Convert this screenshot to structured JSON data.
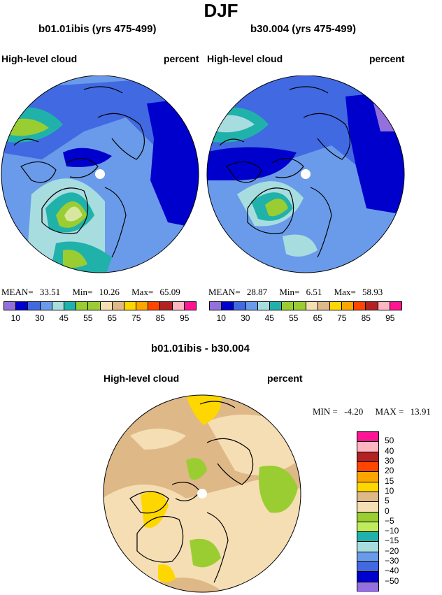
{
  "figure_title": "DJF",
  "variable": "High-level cloud",
  "units": "percent",
  "panels": [
    {
      "title": "b01.01ibis (yrs 475-499)",
      "stats": {
        "mean_label": "MEAN=",
        "mean": "33.51",
        "min_label": "Min=",
        "min": "10.26",
        "max_label": "Max=",
        "max": "65.09"
      }
    },
    {
      "title": "b30.004 (yrs 475-499)",
      "stats": {
        "mean_label": "MEAN=",
        "mean": "28.87",
        "min_label": "Min=",
        "min": "6.51",
        "max_label": "Max=",
        "max": "58.93"
      }
    }
  ],
  "colorbar_abs": {
    "colors": [
      "#9370db",
      "#0000cd",
      "#4169e1",
      "#6a9bea",
      "#a8dde0",
      "#20b2aa",
      "#9acd32",
      "#9acd32",
      "#f5deb3",
      "#deb887",
      "#ffd700",
      "#ffa500",
      "#ff4500",
      "#b22222",
      "#ffb6c1",
      "#ff1493"
    ],
    "labels": [
      "10",
      "30",
      "45",
      "55",
      "65",
      "75",
      "85",
      "95"
    ]
  },
  "diff": {
    "title": "b01.01ibis - b30.004",
    "min_label": "MIN =",
    "min": "-4.20",
    "max_label": "MAX =",
    "max": "13.91"
  },
  "colorbar_diff": {
    "colors": [
      "#ff1493",
      "#ffb6c1",
      "#b22222",
      "#ff4500",
      "#ffa500",
      "#ffd700",
      "#deb887",
      "#f5deb3",
      "#9acd32",
      "#c0ec5c",
      "#20b2aa",
      "#a8dde0",
      "#6a9bea",
      "#4169e1",
      "#0000cd",
      "#9370db"
    ],
    "labels": [
      "50",
      "40",
      "30",
      "20",
      "15",
      "10",
      "5",
      "0",
      "−5",
      "−10",
      "−15",
      "−20",
      "−30",
      "−40",
      "−50"
    ]
  }
}
